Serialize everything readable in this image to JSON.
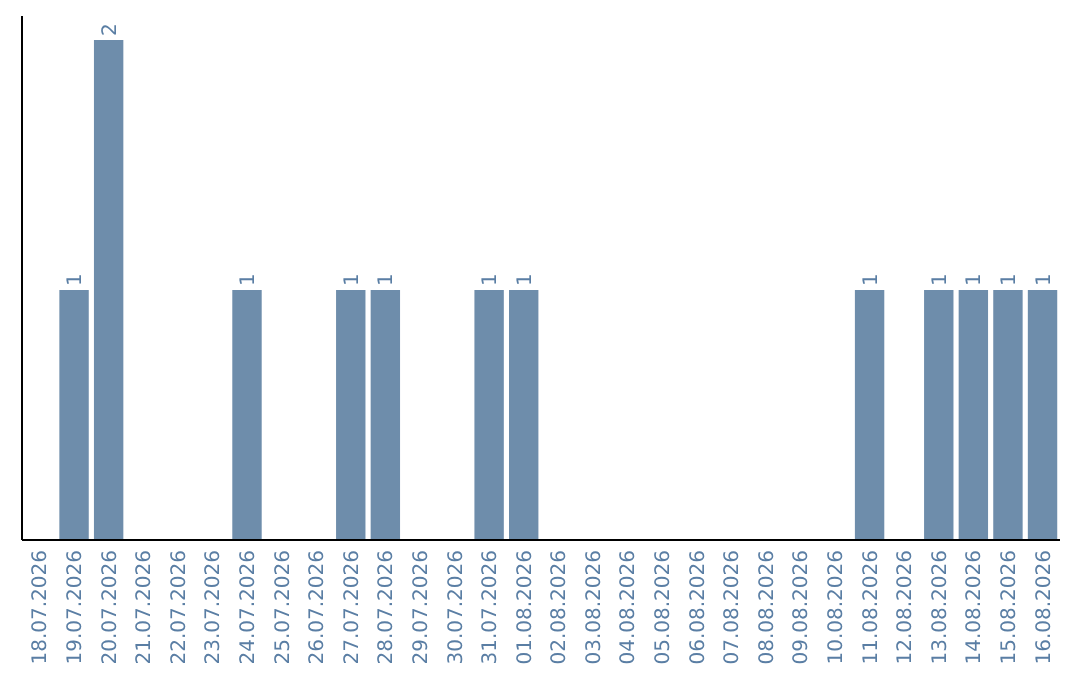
{
  "chart_data": {
    "type": "bar",
    "categories": [
      "18.07.2026",
      "19.07.2026",
      "20.07.2026",
      "21.07.2026",
      "22.07.2026",
      "23.07.2026",
      "24.07.2026",
      "25.07.2026",
      "26.07.2026",
      "27.07.2026",
      "28.07.2026",
      "29.07.2026",
      "30.07.2026",
      "31.07.2026",
      "01.08.2026",
      "02.08.2026",
      "03.08.2026",
      "04.08.2026",
      "05.08.2026",
      "06.08.2026",
      "07.08.2026",
      "08.08.2026",
      "09.08.2026",
      "10.08.2026",
      "11.08.2026",
      "12.08.2026",
      "13.08.2026",
      "14.08.2026",
      "15.08.2026",
      "16.08.2026"
    ],
    "values": [
      0,
      1,
      2,
      0,
      0,
      0,
      1,
      0,
      0,
      1,
      1,
      0,
      0,
      1,
      1,
      0,
      0,
      0,
      0,
      0,
      0,
      0,
      0,
      0,
      1,
      0,
      1,
      1,
      1,
      1
    ],
    "value_labels": [
      null,
      "1",
      "2",
      null,
      null,
      null,
      "1",
      null,
      null,
      "1",
      "1",
      null,
      null,
      "1",
      "1",
      null,
      null,
      null,
      null,
      null,
      null,
      null,
      null,
      null,
      "1",
      null,
      "1",
      "1",
      "1",
      "1"
    ],
    "color": "#6e8dab"
  }
}
